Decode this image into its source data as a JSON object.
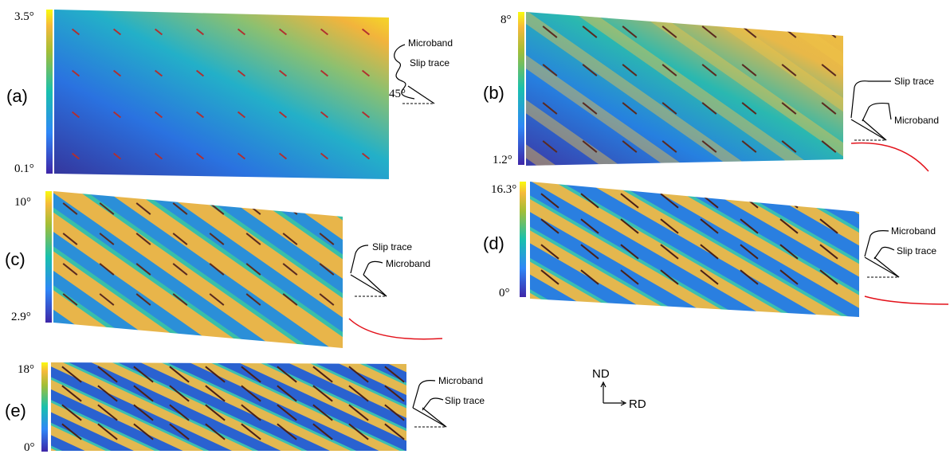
{
  "panels": [
    {
      "label": "(a)",
      "scale_max": "3.5°",
      "scale_min": "0.1°",
      "annotations": [
        "Microband",
        "Slip trace",
        "45°"
      ]
    },
    {
      "label": "(b)",
      "scale_max": "8°",
      "scale_min": "1.2°",
      "annotations": [
        "Slip trace",
        "Microband"
      ]
    },
    {
      "label": "(c)",
      "scale_max": "10°",
      "scale_min": "2.9°",
      "annotations": [
        "Slip trace",
        "Microband"
      ]
    },
    {
      "label": "(d)",
      "scale_max": "16.3°",
      "scale_min": "0°",
      "annotations": [
        "Microband",
        "Slip trace"
      ]
    },
    {
      "label": "(e)",
      "scale_max": "18°",
      "scale_min": "0°",
      "annotations": [
        "Microband",
        "Slip trace"
      ]
    }
  ],
  "axes": {
    "vertical": "ND",
    "horizontal": "RD"
  }
}
